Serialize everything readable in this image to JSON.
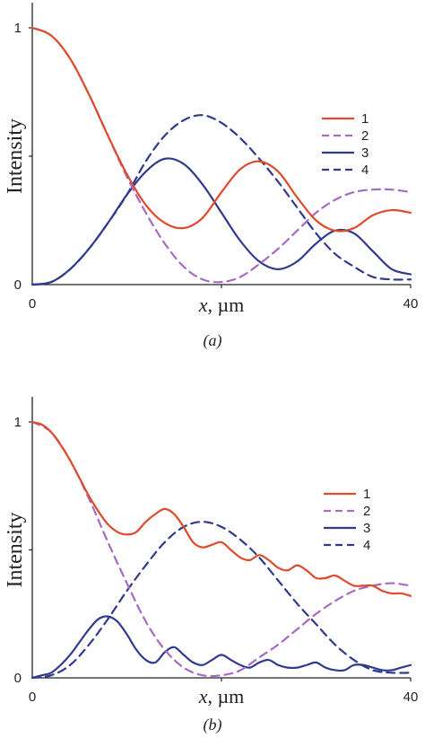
{
  "chart_data": [
    {
      "type": "line",
      "caption": "(a)",
      "xlabel_var": "x",
      "xlabel_unit": ", µm",
      "ylabel": "Intensity",
      "xlim": [
        0,
        40
      ],
      "ylim": [
        0,
        1
      ],
      "x_ticks": [
        "0",
        "40"
      ],
      "y_ticks": [
        "0",
        "1"
      ],
      "legend_position": "top-right",
      "series": [
        {
          "name": "1",
          "color": "#e0492a",
          "dashed": false,
          "x": [
            0,
            2,
            4,
            6,
            8,
            10,
            12,
            14,
            16,
            18,
            20,
            22,
            24,
            26,
            28,
            30,
            32,
            34,
            36,
            38,
            40
          ],
          "values": [
            1.0,
            0.97,
            0.88,
            0.74,
            0.58,
            0.43,
            0.31,
            0.24,
            0.22,
            0.26,
            0.36,
            0.45,
            0.48,
            0.44,
            0.34,
            0.25,
            0.21,
            0.22,
            0.27,
            0.29,
            0.28
          ]
        },
        {
          "name": "2",
          "color": "#a66ac3",
          "dashed": true,
          "x": [
            0,
            2,
            4,
            6,
            8,
            10,
            12,
            14,
            16,
            18,
            20,
            22,
            24,
            26,
            28,
            30,
            32,
            34,
            36,
            38,
            40
          ],
          "values": [
            1.0,
            0.97,
            0.88,
            0.74,
            0.58,
            0.42,
            0.28,
            0.16,
            0.07,
            0.02,
            0.01,
            0.03,
            0.08,
            0.14,
            0.21,
            0.28,
            0.33,
            0.36,
            0.37,
            0.37,
            0.36
          ]
        },
        {
          "name": "3",
          "color": "#2f3a8f",
          "dashed": false,
          "x": [
            0,
            2,
            4,
            6,
            8,
            10,
            12,
            14,
            16,
            18,
            20,
            22,
            24,
            26,
            28,
            30,
            32,
            34,
            36,
            38,
            40
          ],
          "values": [
            0.0,
            0.01,
            0.06,
            0.14,
            0.24,
            0.35,
            0.44,
            0.49,
            0.47,
            0.39,
            0.28,
            0.17,
            0.09,
            0.06,
            0.09,
            0.16,
            0.21,
            0.2,
            0.13,
            0.06,
            0.04
          ]
        },
        {
          "name": "4",
          "color": "#2f3a8f",
          "dashed": true,
          "x": [
            0,
            2,
            4,
            6,
            8,
            10,
            12,
            14,
            16,
            18,
            20,
            22,
            24,
            26,
            28,
            30,
            32,
            34,
            36,
            38,
            40
          ],
          "values": [
            0.0,
            0.01,
            0.06,
            0.14,
            0.24,
            0.35,
            0.48,
            0.58,
            0.64,
            0.66,
            0.63,
            0.57,
            0.49,
            0.4,
            0.3,
            0.2,
            0.12,
            0.07,
            0.03,
            0.02,
            0.02
          ]
        }
      ]
    },
    {
      "type": "line",
      "caption": "(b)",
      "xlabel_var": "x",
      "xlabel_unit": ", µm",
      "ylabel": "Intensity",
      "xlim": [
        0,
        40
      ],
      "ylim": [
        0,
        1
      ],
      "x_ticks": [
        "0",
        "40"
      ],
      "y_ticks": [
        "0",
        "1"
      ],
      "legend_position": "right",
      "series": [
        {
          "name": "1",
          "color": "#e0492a",
          "dashed": false,
          "x": [
            0,
            1,
            2,
            3,
            4,
            5,
            6,
            7,
            8,
            9,
            10,
            11,
            12,
            13,
            14,
            15,
            16,
            17,
            18,
            19,
            20,
            21,
            22,
            23,
            24,
            25,
            26,
            27,
            28,
            29,
            30,
            31,
            32,
            33,
            34,
            35,
            36,
            37,
            38,
            39,
            40
          ],
          "values": [
            1.0,
            0.99,
            0.96,
            0.91,
            0.85,
            0.78,
            0.71,
            0.65,
            0.6,
            0.57,
            0.56,
            0.57,
            0.61,
            0.64,
            0.66,
            0.64,
            0.59,
            0.53,
            0.51,
            0.52,
            0.53,
            0.5,
            0.47,
            0.46,
            0.48,
            0.46,
            0.43,
            0.42,
            0.44,
            0.42,
            0.39,
            0.39,
            0.4,
            0.38,
            0.36,
            0.36,
            0.36,
            0.34,
            0.33,
            0.33,
            0.32
          ]
        },
        {
          "name": "2",
          "color": "#a66ac3",
          "dashed": true,
          "x": [
            0,
            2,
            4,
            6,
            8,
            10,
            12,
            14,
            16,
            18,
            20,
            22,
            24,
            26,
            28,
            30,
            32,
            34,
            36,
            38,
            40
          ],
          "values": [
            1.0,
            0.96,
            0.85,
            0.7,
            0.53,
            0.37,
            0.22,
            0.11,
            0.04,
            0.01,
            0.01,
            0.03,
            0.08,
            0.13,
            0.19,
            0.25,
            0.3,
            0.34,
            0.36,
            0.37,
            0.36
          ]
        },
        {
          "name": "3",
          "color": "#2f3a8f",
          "dashed": false,
          "x": [
            0,
            1,
            2,
            3,
            4,
            5,
            6,
            7,
            8,
            9,
            10,
            11,
            12,
            13,
            14,
            15,
            16,
            17,
            18,
            19,
            20,
            21,
            22,
            23,
            24,
            25,
            26,
            27,
            28,
            29,
            30,
            31,
            32,
            33,
            34,
            35,
            36,
            37,
            38,
            39,
            40
          ],
          "values": [
            0.0,
            0.01,
            0.02,
            0.05,
            0.09,
            0.14,
            0.19,
            0.23,
            0.24,
            0.22,
            0.17,
            0.11,
            0.07,
            0.06,
            0.1,
            0.12,
            0.09,
            0.06,
            0.05,
            0.07,
            0.09,
            0.07,
            0.05,
            0.04,
            0.06,
            0.07,
            0.05,
            0.04,
            0.04,
            0.05,
            0.06,
            0.04,
            0.03,
            0.03,
            0.05,
            0.05,
            0.04,
            0.03,
            0.03,
            0.04,
            0.05
          ]
        },
        {
          "name": "4",
          "color": "#2f3a8f",
          "dashed": true,
          "x": [
            0,
            2,
            4,
            6,
            8,
            10,
            12,
            14,
            16,
            18,
            20,
            22,
            24,
            26,
            28,
            30,
            32,
            34,
            36,
            38,
            40
          ],
          "values": [
            0.0,
            0.01,
            0.05,
            0.13,
            0.23,
            0.34,
            0.44,
            0.53,
            0.59,
            0.61,
            0.59,
            0.54,
            0.47,
            0.38,
            0.29,
            0.21,
            0.13,
            0.07,
            0.03,
            0.02,
            0.02
          ]
        }
      ]
    }
  ]
}
